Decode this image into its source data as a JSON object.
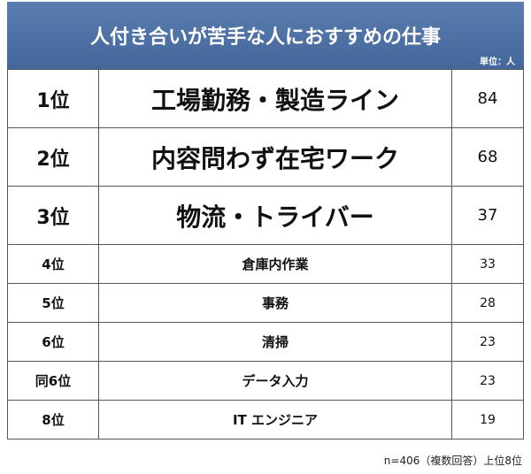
{
  "header": {
    "title": "人付き合いが苦手な人におすすめの仕事",
    "unit": "単位：人"
  },
  "table": {
    "rows": [
      {
        "rank": "1位",
        "job": "工場勤務・製造ライン",
        "count": 84
      },
      {
        "rank": "2位",
        "job": "内容問わず在宅ワーク",
        "count": 68
      },
      {
        "rank": "3位",
        "job": "物流・トライバー",
        "count": 37
      },
      {
        "rank": "4位",
        "job": "倉庫内作業",
        "count": 33
      },
      {
        "rank": "5位",
        "job": "事務",
        "count": 28
      },
      {
        "rank": "6位",
        "job": "清掃",
        "count": 23
      },
      {
        "rank": "同6位",
        "job": "データ入力",
        "count": 23
      },
      {
        "rank": "8位",
        "job": "IT エンジニア",
        "count": 19
      }
    ]
  },
  "footer": {
    "note": "n=406（複数回答）上位8位"
  }
}
